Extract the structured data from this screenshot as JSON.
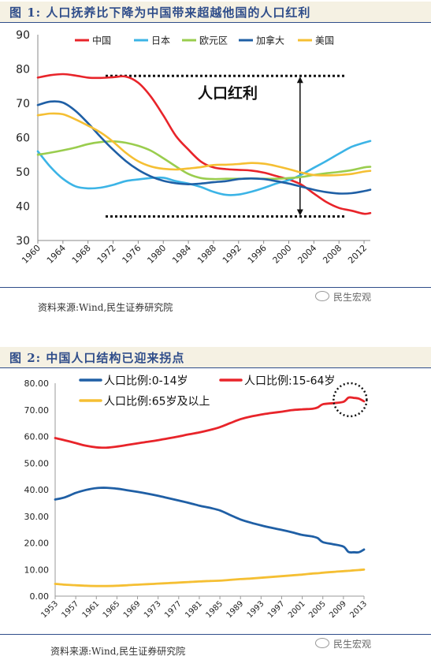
{
  "figure1": {
    "title": "图 1:  人口抚养比下降为中国带来超越他国的人口红利",
    "source": "资料来源:Wind,民生证券研究院",
    "watermark": "民生宏观"
  },
  "figure2": {
    "title": "图 2:  中国人口结构已迎来拐点",
    "source": "资料来源:Wind,民生证券研究院",
    "watermark": "民生宏观"
  },
  "colors": {
    "china": "#e8242a",
    "japan": "#3cb4e6",
    "euro": "#9acd4e",
    "canada": "#1f5fa5",
    "usa": "#f5bf33",
    "header_bg": "#f5f1e3",
    "header_text": "#2f4d8a"
  },
  "chart_data": [
    {
      "type": "line",
      "ylim": [
        30,
        90
      ],
      "yticks": [
        "30",
        "40",
        "50",
        "60",
        "70",
        "80",
        "90"
      ],
      "xlim": [
        1960,
        2013
      ],
      "xticks": [
        "1960",
        "1964",
        "1968",
        "1972",
        "1976",
        "1980",
        "1984",
        "1988",
        "1992",
        "1996",
        "2000",
        "2004",
        "2008",
        "2012"
      ],
      "legend_position": "top",
      "annotation": "人口红利",
      "reference_lines": [
        78,
        37
      ],
      "series": [
        {
          "name": "中国",
          "color": "#e8242a",
          "x": [
            1960,
            1962,
            1964,
            1966,
            1968,
            1970,
            1972,
            1974,
            1976,
            1978,
            1980,
            1982,
            1984,
            1986,
            1988,
            1990,
            1992,
            1994,
            1996,
            1998,
            2000,
            2002,
            2004,
            2006,
            2008,
            2010,
            2012,
            2013
          ],
          "y": [
            77.5,
            78.2,
            78.5,
            78.1,
            77.5,
            77.4,
            77.6,
            77.8,
            76,
            72,
            66.5,
            60.5,
            56.5,
            53,
            51.3,
            50.8,
            50.6,
            50.4,
            49.8,
            48.8,
            47.8,
            46.3,
            43.7,
            41.2,
            39.5,
            38.7,
            37.8,
            38
          ]
        },
        {
          "name": "日本",
          "color": "#3cb4e6",
          "x": [
            1960,
            1962,
            1964,
            1966,
            1968,
            1970,
            1972,
            1974,
            1976,
            1978,
            1980,
            1982,
            1984,
            1986,
            1988,
            1990,
            1992,
            1994,
            1996,
            1998,
            2000,
            2002,
            2004,
            2006,
            2008,
            2010,
            2012,
            2013
          ],
          "y": [
            56,
            51.5,
            48,
            45.8,
            45.2,
            45.4,
            46.2,
            47.3,
            47.8,
            48.2,
            48.3,
            47.3,
            46.6,
            45.6,
            44.2,
            43.3,
            43.4,
            44.2,
            45.3,
            46.6,
            47.6,
            49.2,
            51.2,
            53.2,
            55.3,
            57.3,
            58.5,
            59
          ]
        },
        {
          "name": "欧元区",
          "color": "#9acd4e",
          "x": [
            1960,
            1962,
            1964,
            1966,
            1968,
            1970,
            1972,
            1974,
            1976,
            1978,
            1980,
            1982,
            1984,
            1986,
            1988,
            1990,
            1992,
            1994,
            1996,
            1998,
            2000,
            2002,
            2004,
            2006,
            2008,
            2010,
            2012,
            2013
          ],
          "y": [
            55,
            55.6,
            56.3,
            57.1,
            58.1,
            58.7,
            58.9,
            58.5,
            57.6,
            56.2,
            54,
            51.6,
            49.4,
            48.2,
            47.9,
            48,
            48,
            48.1,
            48,
            48,
            48.2,
            48.5,
            49.1,
            49.6,
            50,
            50.5,
            51.3,
            51.5
          ]
        },
        {
          "name": "加拿大",
          "color": "#1f5fa5",
          "x": [
            1960,
            1962,
            1964,
            1966,
            1968,
            1970,
            1972,
            1974,
            1976,
            1978,
            1980,
            1982,
            1984,
            1986,
            1988,
            1990,
            1992,
            1994,
            1996,
            1998,
            2000,
            2002,
            2004,
            2006,
            2008,
            2010,
            2012,
            2013
          ],
          "y": [
            69.5,
            70.5,
            70.2,
            67.8,
            64.2,
            60.2,
            56.5,
            53.2,
            50.6,
            48.7,
            47.4,
            46.7,
            46.4,
            46.6,
            47,
            47.3,
            47.9,
            48.1,
            47.9,
            47.3,
            46.6,
            45.7,
            44.8,
            44.1,
            43.7,
            43.8,
            44.4,
            44.8
          ]
        },
        {
          "name": "美国",
          "color": "#f5bf33",
          "x": [
            1960,
            1962,
            1964,
            1966,
            1968,
            1970,
            1972,
            1974,
            1976,
            1978,
            1980,
            1982,
            1984,
            1986,
            1988,
            1990,
            1992,
            1994,
            1996,
            1998,
            2000,
            2002,
            2004,
            2006,
            2008,
            2010,
            2012,
            2013
          ],
          "y": [
            66.5,
            67,
            66.8,
            65.3,
            63.5,
            61.5,
            58.8,
            55.6,
            53.1,
            51.6,
            50.9,
            50.7,
            51,
            51.4,
            52,
            52.1,
            52.3,
            52.6,
            52.4,
            51.7,
            50.8,
            49.8,
            49.1,
            49,
            49.1,
            49.4,
            50.1,
            50.3
          ]
        }
      ]
    },
    {
      "type": "line",
      "ylim": [
        0,
        80
      ],
      "yticks": [
        "0.00",
        "10.00",
        "20.00",
        "30.00",
        "40.00",
        "50.00",
        "60.00",
        "70.00",
        "80.00"
      ],
      "xlim": [
        1953,
        2013
      ],
      "xticks": [
        "1953",
        "1957",
        "1961",
        "1965",
        "1969",
        "1973",
        "1977",
        "1981",
        "1985",
        "1989",
        "1993",
        "1997",
        "2001",
        "2005",
        "2009",
        "2013"
      ],
      "legend_position": "top",
      "series": [
        {
          "name": "人口比例:0-14岁",
          "color": "#1f5fa5",
          "x": [
            1953,
            1955,
            1957,
            1959,
            1961,
            1963,
            1965,
            1967,
            1969,
            1971,
            1973,
            1975,
            1977,
            1979,
            1981,
            1983,
            1985,
            1987,
            1989,
            1991,
            1993,
            1995,
            1997,
            1999,
            2001,
            2003,
            2004,
            2005,
            2007,
            2009,
            2010,
            2011,
            2012,
            2013
          ],
          "y": [
            36.3,
            37.2,
            38.8,
            39.9,
            40.6,
            40.7,
            40.4,
            39.8,
            39.2,
            38.5,
            37.7,
            36.8,
            35.9,
            35,
            34,
            33.2,
            32.2,
            30.5,
            28.8,
            27.6,
            26.6,
            25.7,
            24.9,
            24,
            23,
            22.4,
            21.8,
            20.3,
            19.5,
            18.6,
            16.6,
            16.5,
            16.5,
            17.5
          ]
        },
        {
          "name": "人口比例:15-64岁",
          "color": "#e8242a",
          "x": [
            1953,
            1955,
            1957,
            1959,
            1961,
            1963,
            1965,
            1967,
            1969,
            1971,
            1973,
            1975,
            1977,
            1979,
            1981,
            1983,
            1985,
            1987,
            1989,
            1991,
            1993,
            1995,
            1997,
            1999,
            2001,
            2003,
            2004,
            2005,
            2007,
            2009,
            2010,
            2011,
            2012,
            2013
          ],
          "y": [
            59.4,
            58.5,
            57.5,
            56.5,
            55.9,
            55.8,
            56.2,
            56.8,
            57.4,
            58,
            58.6,
            59.3,
            60,
            60.8,
            61.5,
            62.4,
            63.5,
            65,
            66.5,
            67.5,
            68.2,
            68.8,
            69.3,
            69.9,
            70.2,
            70.4,
            70.9,
            72.1,
            72.5,
            73,
            74.6,
            74.5,
            74.2,
            73.2
          ]
        },
        {
          "name": "人口比例:65岁及以上",
          "color": "#f5bf33",
          "x": [
            1953,
            1955,
            1957,
            1959,
            1961,
            1963,
            1965,
            1967,
            1969,
            1971,
            1973,
            1975,
            1977,
            1979,
            1981,
            1983,
            1985,
            1987,
            1989,
            1991,
            1993,
            1995,
            1997,
            1999,
            2001,
            2003,
            2004,
            2005,
            2007,
            2009,
            2010,
            2011,
            2012,
            2013
          ],
          "y": [
            4.6,
            4.3,
            4.1,
            3.9,
            3.8,
            3.8,
            3.9,
            4.1,
            4.3,
            4.5,
            4.7,
            4.9,
            5.1,
            5.3,
            5.5,
            5.7,
            5.8,
            6.1,
            6.4,
            6.6,
            6.9,
            7.2,
            7.5,
            7.8,
            8.1,
            8.5,
            8.6,
            8.8,
            9.1,
            9.4,
            9.5,
            9.7,
            9.8,
            10
          ]
        }
      ]
    }
  ]
}
